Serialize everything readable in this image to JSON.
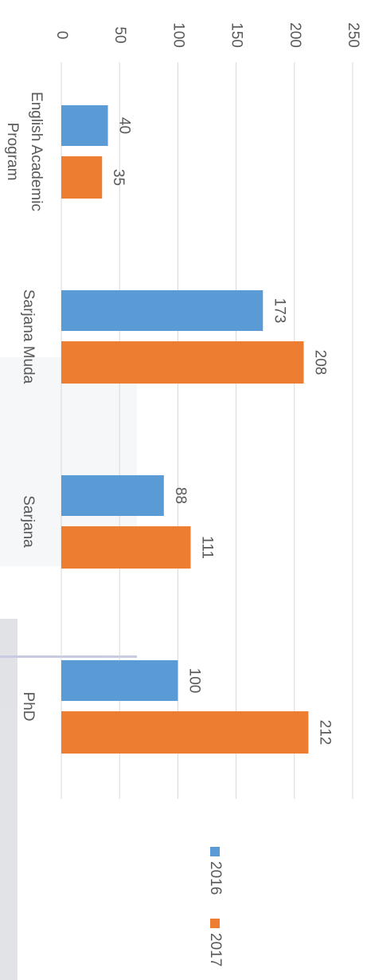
{
  "chart_data": {
    "type": "bar",
    "categories": [
      "English Academic Program",
      "Sarjana Muda",
      "Sarjana",
      "PhD"
    ],
    "series": [
      {
        "name": "2016",
        "color": "#5b9bd5",
        "values": [
          40,
          173,
          88,
          100
        ]
      },
      {
        "name": "2017",
        "color": "#ed7d31",
        "values": [
          35,
          208,
          111,
          212
        ]
      }
    ],
    "ylim": [
      0,
      250
    ],
    "yticks": [
      0,
      50,
      100,
      150,
      200,
      250
    ],
    "grid": true,
    "legend": "bottom"
  }
}
